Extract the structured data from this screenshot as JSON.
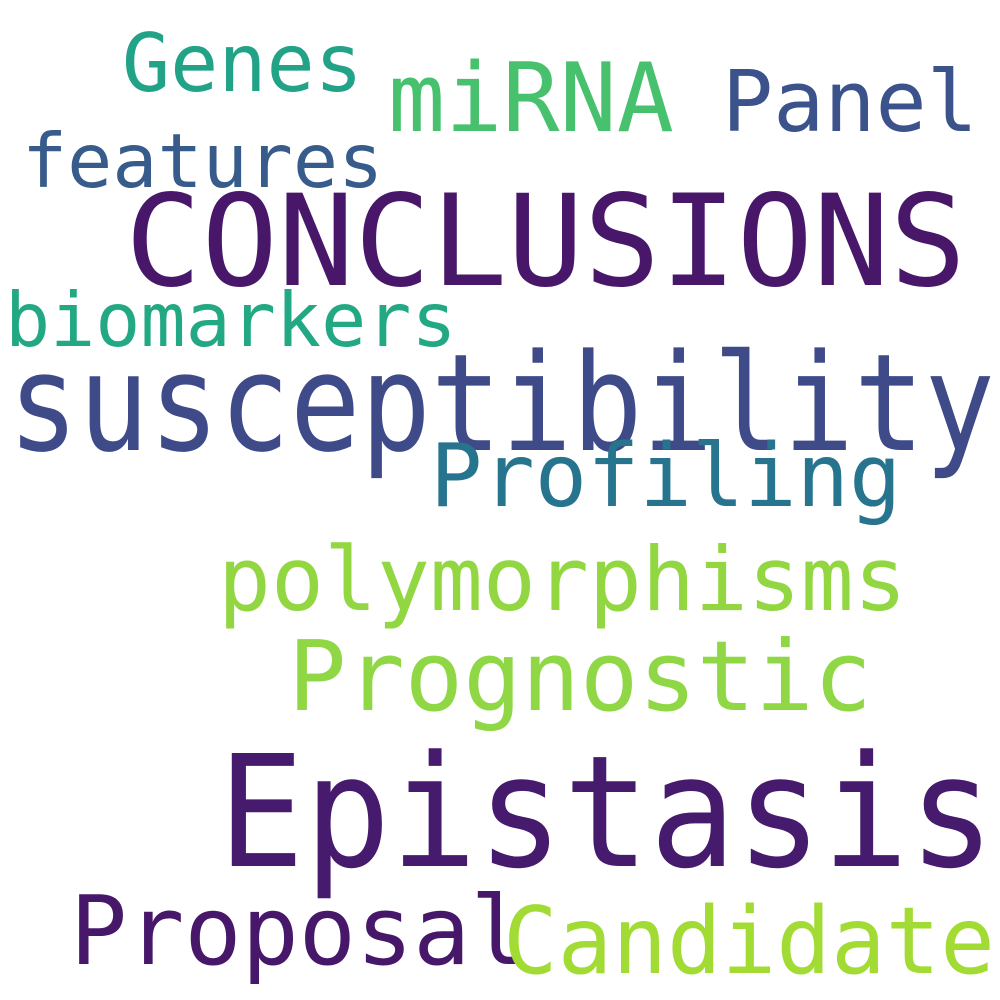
{
  "word_cloud": {
    "background": "#ffffff",
    "words": [
      {
        "text": "Genes",
        "color": "#22a387"
      },
      {
        "text": "miRNA",
        "color": "#48c16e"
      },
      {
        "text": "Panel",
        "color": "#3b528b"
      },
      {
        "text": "features",
        "color": "#375c8c"
      },
      {
        "text": "CONCLUSIONS",
        "color": "#48176a"
      },
      {
        "text": "biomarkers",
        "color": "#23a884"
      },
      {
        "text": "susceptibility",
        "color": "#3f4a89"
      },
      {
        "text": "Profiling",
        "color": "#27748e"
      },
      {
        "text": "polymorphisms",
        "color": "#92d742"
      },
      {
        "text": "Prognostic",
        "color": "#8fd744"
      },
      {
        "text": "Epistasis",
        "color": "#461a6c"
      },
      {
        "text": "Proposal",
        "color": "#47176a"
      },
      {
        "text": "Candidate",
        "color": "#a2db34"
      }
    ]
  }
}
